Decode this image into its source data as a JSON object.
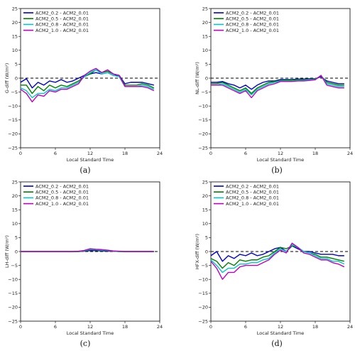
{
  "chart_data": [
    {
      "type": "line",
      "panel_label": "(a)",
      "xlabel": "Local Standard Time",
      "ylabel": "G-diff (W/m²)",
      "xlim": [
        0,
        24
      ],
      "ylim": [
        -25,
        25
      ],
      "xticks": [
        0,
        6,
        12,
        18,
        24
      ],
      "yticks": [
        25,
        20,
        15,
        10,
        5,
        0,
        -5,
        -10,
        -15,
        -20,
        -25
      ],
      "legend": "top-left",
      "x": [
        0,
        1,
        2,
        3,
        4,
        5,
        6,
        7,
        8,
        9,
        10,
        11,
        12,
        13,
        14,
        15,
        16,
        17,
        18,
        19,
        20,
        21,
        22,
        23
      ],
      "series": [
        {
          "name": "ACM2_0.2 - ACM2_0.01",
          "color": "#0000cc",
          "values": [
            -1.5,
            -0.2,
            -3.5,
            -1.5,
            -2.5,
            -1,
            -1.5,
            -0.5,
            -1.5,
            -1,
            0,
            1,
            1.5,
            2,
            1.5,
            2,
            1,
            1,
            -2,
            -1.5,
            -1.5,
            -1.5,
            -2,
            -2.5
          ]
        },
        {
          "name": "ACM2_0.5 - ACM2_0.01",
          "color": "#008000",
          "values": [
            -2.5,
            -2.5,
            -5.5,
            -3,
            -4.5,
            -2.5,
            -3.5,
            -2.5,
            -3,
            -2,
            -1,
            0.5,
            1.5,
            3,
            2,
            2.5,
            1.5,
            1,
            -2.5,
            -2.5,
            -2.5,
            -2,
            -2.5,
            -3.5
          ]
        },
        {
          "name": "ACM2_0.8 - ACM2_0.01",
          "color": "#00c8c8",
          "values": [
            -3.5,
            -4.5,
            -7,
            -5.5,
            -5.5,
            -4,
            -4.5,
            -3.5,
            -3.5,
            -2.5,
            -1.5,
            0.5,
            2,
            3,
            1.5,
            2,
            1,
            0.5,
            -3,
            -3,
            -3,
            -2.5,
            -3,
            -4
          ]
        },
        {
          "name": "ACM2_1.0 - ACM2_0.01",
          "color": "#c000c0",
          "values": [
            -4,
            -5.5,
            -8.5,
            -6,
            -6.5,
            -4.5,
            -5,
            -4,
            -4,
            -3,
            -2,
            1,
            2.5,
            3.5,
            2,
            3,
            1.5,
            1,
            -3,
            -3,
            -3,
            -3,
            -3.5,
            -4.5
          ]
        }
      ]
    },
    {
      "type": "line",
      "panel_label": "(b)",
      "xlabel": "Local Standard Time",
      "ylabel": "NL-diff (W/m²)",
      "xlim": [
        0,
        24
      ],
      "ylim": [
        -25,
        25
      ],
      "xticks": [
        0,
        6,
        12,
        18,
        24
      ],
      "yticks": [
        25,
        20,
        15,
        10,
        5,
        0,
        -5,
        -10,
        -15,
        -20,
        -25
      ],
      "legend": "top-left",
      "x": [
        0,
        1,
        2,
        3,
        4,
        5,
        6,
        7,
        8,
        9,
        10,
        11,
        12,
        13,
        14,
        15,
        16,
        17,
        18,
        19,
        20,
        21,
        22,
        23
      ],
      "series": [
        {
          "name": "ACM2_0.2 - ACM2_0.01",
          "color": "#0000cc",
          "values": [
            -1.5,
            -1.5,
            -1.2,
            -2,
            -2.5,
            -3.5,
            -2.5,
            -4,
            -2.5,
            -1.5,
            -1,
            -1,
            -0.5,
            -0.5,
            -0.5,
            -0.3,
            -0.3,
            -0.2,
            -0.2,
            0.5,
            -1,
            -1.5,
            -2,
            -2
          ]
        },
        {
          "name": "ACM2_0.5 - ACM2_0.01",
          "color": "#008000",
          "values": [
            -2,
            -2,
            -1.5,
            -2.5,
            -3.5,
            -4.5,
            -3.5,
            -5.5,
            -3.5,
            -2.5,
            -1.5,
            -1.2,
            -0.8,
            -0.7,
            -0.7,
            -0.5,
            -0.5,
            -0.4,
            -0.3,
            0.8,
            -1.5,
            -2,
            -2.5,
            -2.5
          ]
        },
        {
          "name": "ACM2_0.8 - ACM2_0.01",
          "color": "#00c8c8",
          "values": [
            -2.5,
            -2.5,
            -2,
            -3,
            -4,
            -5,
            -4,
            -6,
            -4,
            -3,
            -2,
            -1.5,
            -1,
            -1,
            -1,
            -0.8,
            -0.8,
            -0.6,
            -0.5,
            1,
            -2,
            -2.5,
            -3,
            -3
          ]
        },
        {
          "name": "ACM2_1.0 - ACM2_0.01",
          "color": "#c000c0",
          "values": [
            -2.5,
            -2.5,
            -2.5,
            -3.5,
            -4.5,
            -5.5,
            -4.5,
            -7,
            -4.5,
            -3.5,
            -2.5,
            -2,
            -1.2,
            -1.2,
            -1.2,
            -1,
            -1,
            -0.8,
            -0.6,
            1,
            -2.5,
            -3,
            -3.5,
            -3.5
          ]
        }
      ]
    },
    {
      "type": "line",
      "panel_label": "(c)",
      "xlabel": "Local Standard Time",
      "ylabel": "LH-diff (W/m²)",
      "xlim": [
        0,
        24
      ],
      "ylim": [
        -25,
        25
      ],
      "xticks": [
        0,
        6,
        12,
        18,
        24
      ],
      "yticks": [
        25,
        20,
        15,
        10,
        5,
        0,
        -5,
        -10,
        -15,
        -20,
        -25
      ],
      "legend": "top-left",
      "x": [
        0,
        1,
        2,
        3,
        4,
        5,
        6,
        7,
        8,
        9,
        10,
        11,
        12,
        13,
        14,
        15,
        16,
        17,
        18,
        19,
        20,
        21,
        22,
        23
      ],
      "series": [
        {
          "name": "ACM2_0.2 - ACM2_0.01",
          "color": "#0000cc",
          "values": [
            0,
            0,
            0,
            0,
            0,
            0,
            0,
            0,
            0,
            0,
            0,
            0.1,
            0.3,
            0.3,
            0.2,
            0.1,
            0.1,
            0,
            0,
            0,
            0,
            0,
            0,
            0
          ]
        },
        {
          "name": "ACM2_0.5 - ACM2_0.01",
          "color": "#008000",
          "values": [
            0,
            0,
            0,
            0,
            0,
            0,
            0,
            0,
            0,
            0,
            0,
            0.2,
            0.6,
            0.5,
            0.4,
            0.3,
            0.1,
            0,
            0,
            0,
            0,
            0,
            0,
            0
          ]
        },
        {
          "name": "ACM2_0.8 - ACM2_0.01",
          "color": "#00c8c8",
          "values": [
            0,
            0,
            0,
            0,
            0,
            0,
            0,
            0,
            0,
            0,
            0.1,
            0.3,
            0.8,
            0.7,
            0.5,
            0.4,
            0.2,
            0,
            0,
            0,
            0,
            0,
            0,
            0
          ]
        },
        {
          "name": "ACM2_1.0 - ACM2_0.01",
          "color": "#c000c0",
          "values": [
            0,
            0,
            0,
            0,
            0,
            0,
            0,
            0,
            0,
            0,
            0.1,
            0.4,
            1.0,
            0.8,
            0.7,
            0.5,
            0.2,
            0.1,
            0,
            0,
            0,
            0,
            0,
            0
          ]
        }
      ]
    },
    {
      "type": "line",
      "panel_label": "(d)",
      "xlabel": "Local Standard Time",
      "ylabel": "HFX-diff (W/m²)",
      "xlim": [
        0,
        24
      ],
      "ylim": [
        -25,
        25
      ],
      "xticks": [
        0,
        6,
        12,
        18,
        24
      ],
      "yticks": [
        25,
        20,
        15,
        10,
        5,
        0,
        -5,
        -10,
        -15,
        -20,
        -25
      ],
      "legend": "top-left",
      "x": [
        0,
        1,
        2,
        3,
        4,
        5,
        6,
        7,
        8,
        9,
        10,
        11,
        12,
        13,
        14,
        15,
        16,
        17,
        18,
        19,
        20,
        21,
        22,
        23
      ],
      "series": [
        {
          "name": "ACM2_0.2 - ACM2_0.01",
          "color": "#0000cc",
          "values": [
            -1.5,
            0,
            -3.5,
            -1.5,
            -2.5,
            -1,
            -1.5,
            -0.5,
            -1.5,
            -1,
            0,
            1,
            1.5,
            0,
            2,
            1,
            0,
            0,
            -0.5,
            -1,
            -1,
            -1,
            -1.5,
            -1.5
          ]
        },
        {
          "name": "ACM2_0.5 - ACM2_0.01",
          "color": "#008000",
          "values": [
            -2.5,
            -3.5,
            -6,
            -4,
            -5,
            -3,
            -3.5,
            -3,
            -3,
            -2,
            -1.5,
            0,
            1.5,
            1,
            2,
            1.5,
            0,
            -0.5,
            -1,
            -2,
            -2,
            -2.5,
            -3,
            -3.5
          ]
        },
        {
          "name": "ACM2_0.8 - ACM2_0.01",
          "color": "#00c8c8",
          "values": [
            -3,
            -5,
            -7.5,
            -6,
            -6,
            -4.5,
            -4.5,
            -4,
            -4,
            -3,
            -2.5,
            -0.5,
            1,
            0,
            2.5,
            1.5,
            0,
            -0.5,
            -1.5,
            -2.5,
            -2.5,
            -3.5,
            -3.5,
            -4.5
          ]
        },
        {
          "name": "ACM2_1.0 - ACM2_0.01",
          "color": "#c000c0",
          "values": [
            -3.5,
            -6,
            -10,
            -7.5,
            -7.5,
            -5.5,
            -5,
            -5,
            -5,
            -4,
            -3,
            -1,
            0.5,
            -0.5,
            3,
            1.5,
            -0.5,
            -1,
            -2,
            -3,
            -3,
            -4,
            -4.5,
            -5.5
          ]
        }
      ]
    }
  ]
}
